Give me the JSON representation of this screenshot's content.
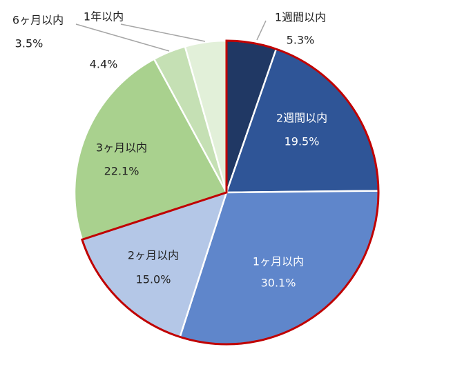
{
  "chart_data": {
    "type": "pie",
    "categories": [
      "1週間以内",
      "2週間以内",
      "1ヶ月以内",
      "2ヶ月以内",
      "3ヶ月以内",
      "6ヶ月以内",
      "1年以内"
    ],
    "values": [
      5.3,
      19.5,
      30.1,
      15.0,
      22.1,
      3.5,
      4.4
    ],
    "value_labels": [
      "5.3%",
      "19.5%",
      "30.1%",
      "15.0%",
      "22.1%",
      "3.5%",
      "4.4%"
    ],
    "colors": [
      "#203864",
      "#2f5597",
      "#5f86cb",
      "#b4c7e7",
      "#a9d18e",
      "#c5e0b4",
      "#e2f0d9"
    ],
    "highlight_slices": [
      0,
      1,
      2,
      3
    ],
    "highlight_color": "#c00000"
  }
}
